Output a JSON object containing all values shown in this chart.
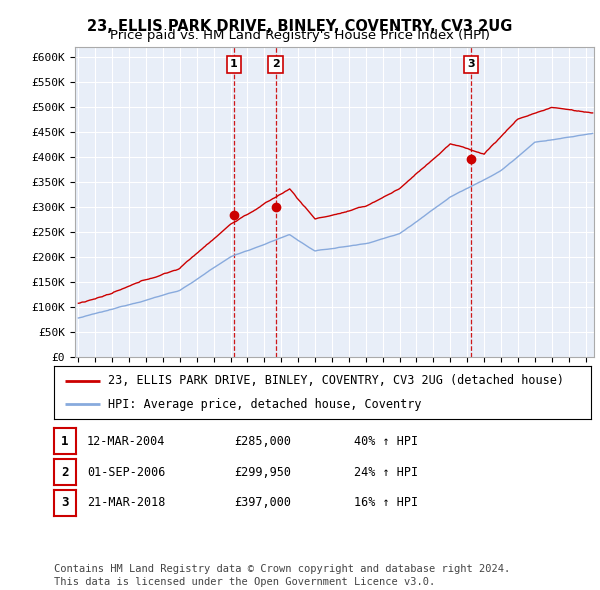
{
  "title": "23, ELLIS PARK DRIVE, BINLEY, COVENTRY, CV3 2UG",
  "subtitle": "Price paid vs. HM Land Registry's House Price Index (HPI)",
  "ylabel_ticks": [
    "£0",
    "£50K",
    "£100K",
    "£150K",
    "£200K",
    "£250K",
    "£300K",
    "£350K",
    "£400K",
    "£450K",
    "£500K",
    "£550K",
    "£600K"
  ],
  "ytick_values": [
    0,
    50000,
    100000,
    150000,
    200000,
    250000,
    300000,
    350000,
    400000,
    450000,
    500000,
    550000,
    600000
  ],
  "xlim_start": 1994.8,
  "xlim_end": 2025.5,
  "ylim_min": 0,
  "ylim_max": 620000,
  "background_color": "#ffffff",
  "plot_bg_color": "#e8eef8",
  "grid_color": "#ffffff",
  "sale_color": "#cc0000",
  "hpi_color": "#88aadd",
  "vline_color": "#cc0000",
  "transactions": [
    {
      "label": "1",
      "date_num": 2004.19,
      "price": 285000
    },
    {
      "label": "2",
      "date_num": 2006.67,
      "price": 299950
    },
    {
      "label": "3",
      "date_num": 2018.22,
      "price": 397000
    }
  ],
  "legend_property_label": "23, ELLIS PARK DRIVE, BINLEY, COVENTRY, CV3 2UG (detached house)",
  "legend_hpi_label": "HPI: Average price, detached house, Coventry",
  "table_rows": [
    {
      "num": "1",
      "date": "12-MAR-2004",
      "price": "£285,000",
      "change": "40% ↑ HPI"
    },
    {
      "num": "2",
      "date": "01-SEP-2006",
      "price": "£299,950",
      "change": "24% ↑ HPI"
    },
    {
      "num": "3",
      "date": "21-MAR-2018",
      "price": "£397,000",
      "change": "16% ↑ HPI"
    }
  ],
  "footer": "Contains HM Land Registry data © Crown copyright and database right 2024.\nThis data is licensed under the Open Government Licence v3.0.",
  "title_fontsize": 10.5,
  "subtitle_fontsize": 9.5,
  "tick_fontsize": 8,
  "legend_fontsize": 8.5,
  "table_fontsize": 8.5,
  "footer_fontsize": 7.5
}
